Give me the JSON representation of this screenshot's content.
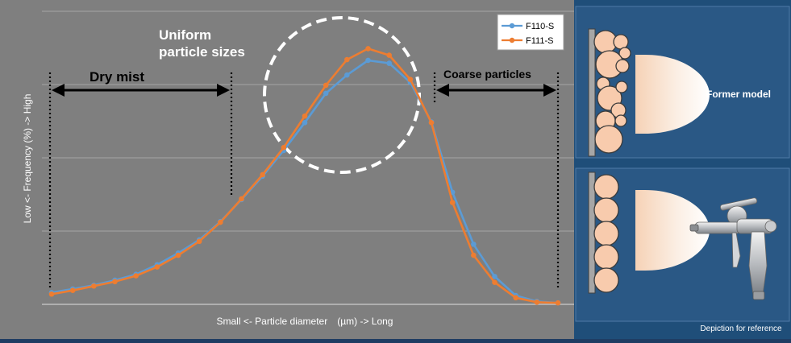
{
  "chart_data": {
    "type": "line",
    "xlabel": "Small <- Particle diameter　(µm) -> Long",
    "ylabel": "Low <- Frequency (%) -> High",
    "ylim": [
      0,
      4
    ],
    "grid": true,
    "legend_placement": "top-right",
    "series": [
      {
        "name": "F110-S",
        "color": "#5b9bd5",
        "values": [
          0.16,
          0.21,
          0.26,
          0.33,
          0.41,
          0.54,
          0.7,
          0.88,
          1.13,
          1.43,
          1.75,
          2.1,
          2.48,
          2.88,
          3.13,
          3.33,
          3.29,
          3.03,
          2.49,
          1.53,
          0.82,
          0.38,
          0.12,
          0.04,
          0.02
        ]
      },
      {
        "name": "F111-S",
        "color": "#ed7d31",
        "values": [
          0.14,
          0.19,
          0.25,
          0.31,
          0.39,
          0.51,
          0.67,
          0.86,
          1.12,
          1.44,
          1.77,
          2.14,
          2.57,
          2.99,
          3.34,
          3.49,
          3.4,
          3.07,
          2.48,
          1.39,
          0.67,
          0.3,
          0.09,
          0.03,
          0.02
        ]
      }
    ],
    "annotations": {
      "dry_mist": "Dry mist",
      "uniform_line1": "Uniform",
      "uniform_line2": "particle sizes",
      "coarse": "Coarse particles"
    }
  },
  "side_panel": {
    "former_model_label": "Former model",
    "footnote": "Depiction for reference"
  },
  "colors": {
    "plot_bg": "#7f7f7f",
    "panel_bg": "#1f4e79",
    "particle_fill": "#f8cbad",
    "particle_stroke": "#3b3b3b"
  }
}
